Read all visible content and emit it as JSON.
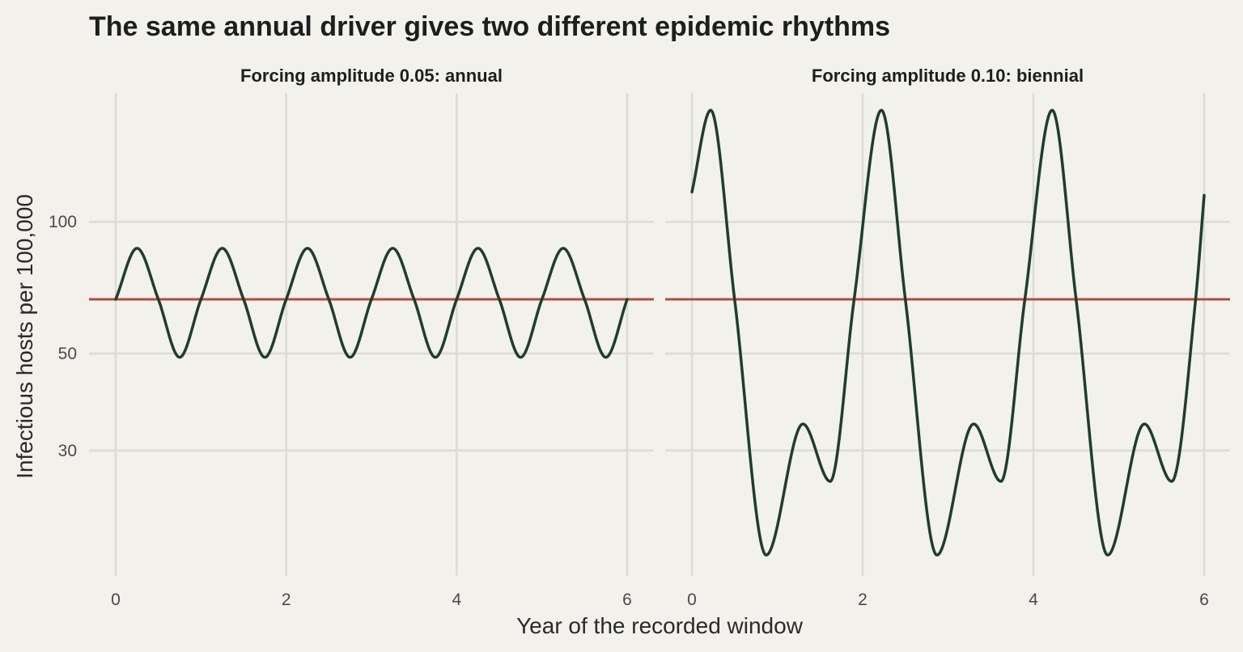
{
  "chart_data": {
    "type": "line",
    "title": "The same annual driver gives two different epidemic rhythms",
    "xlabel": "Year of the recorded window",
    "ylabel": "Infectious hosts per 100,000",
    "y_scale": "log",
    "xlim": [
      0,
      6
    ],
    "ylim": [
      15.5,
      197
    ],
    "x_ticks": [
      0,
      2,
      4,
      6
    ],
    "y_ticks": [
      30,
      50,
      100
    ],
    "y_tick_labels": [
      "30",
      "50",
      "100"
    ],
    "grid": true,
    "colors": {
      "series_line": "#1f3d2d",
      "reference_line": "#b04a48"
    },
    "panels": [
      {
        "strip_label": "Forcing amplitude 0.05: annual",
        "reference_y": 66.5,
        "series": {
          "x": [
            0,
            0.25,
            0.5,
            0.75,
            1,
            1.25,
            1.5,
            1.75,
            2,
            2.25,
            2.5,
            2.75,
            3,
            3.25,
            3.5,
            3.75,
            4,
            4.25,
            4.5,
            4.75,
            5,
            5.25,
            5.5,
            5.75,
            6
          ],
          "values": [
            66.5,
            87,
            66.5,
            49,
            66.5,
            87,
            66.5,
            49,
            66.5,
            87,
            66.5,
            49,
            66.5,
            87,
            66.5,
            49,
            66.5,
            87,
            66.5,
            49,
            66.5,
            87,
            66.5,
            49,
            66.5
          ]
        }
      },
      {
        "strip_label": "Forcing amplitude 0.10: biennial",
        "reference_y": 66.5,
        "series": {
          "x": [
            0,
            0.22,
            0.5,
            0.87,
            1.3,
            1.62,
            1.9,
            2.22,
            2.5,
            2.87,
            3.3,
            3.62,
            3.9,
            4.22,
            4.5,
            4.87,
            5.3,
            5.62,
            5.9,
            6
          ],
          "values": [
            117,
            180,
            66.5,
            17.3,
            34.5,
            25.5,
            66.5,
            180,
            66.5,
            17.3,
            34.5,
            25.5,
            66.5,
            180,
            66.5,
            17.3,
            34.5,
            25.5,
            66.5,
            115
          ]
        }
      }
    ]
  }
}
